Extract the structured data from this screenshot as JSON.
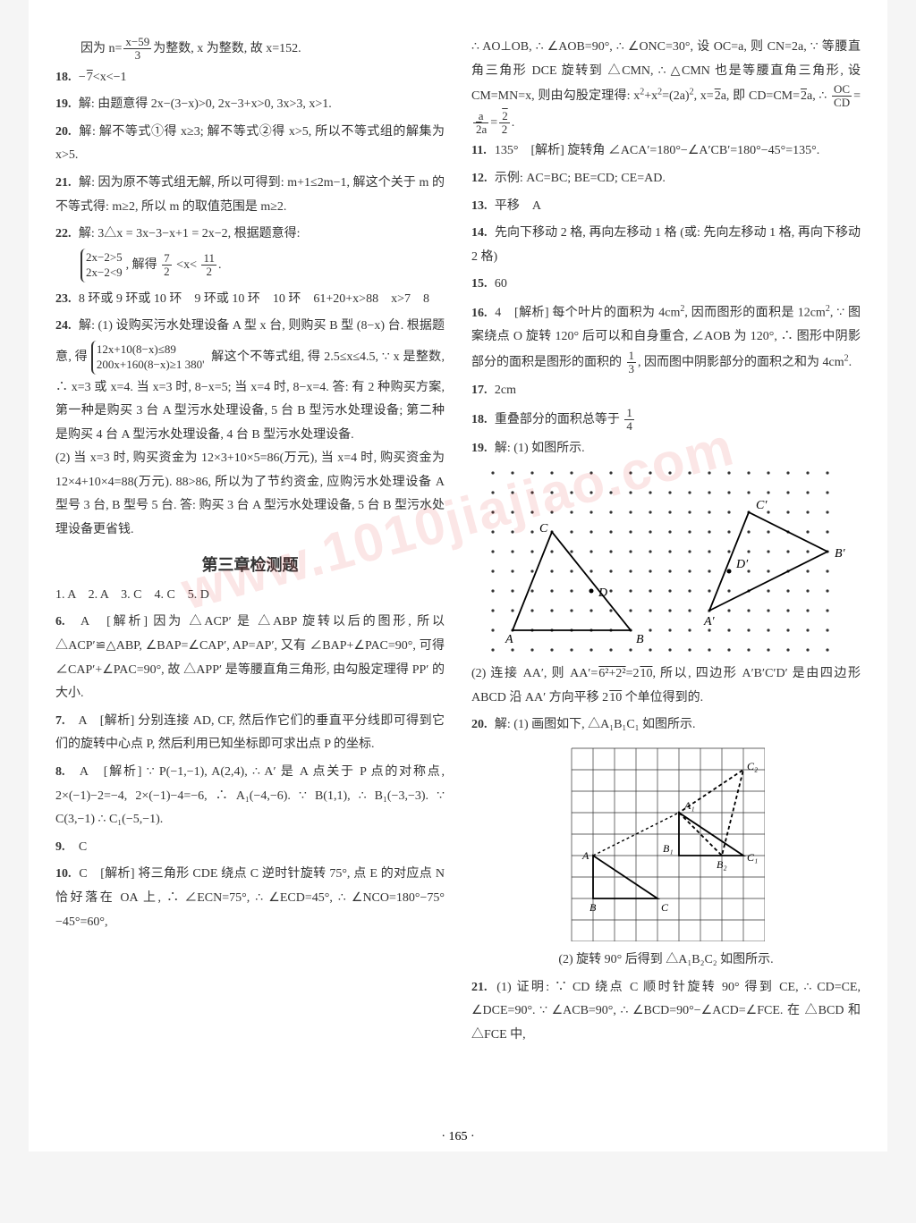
{
  "page_number": "· 165 ·",
  "watermark": "www.1010jiajiao.com",
  "left": {
    "line17end": "因为 n = (x−59)/3 为整数, x 为整数, 故 x=152.",
    "i18": "−√7 < x < −1",
    "i19": "解: 由题意得 2x−(3−x)>0, 2x−3+x>0, 3x>3, x>1.",
    "i20": "解: 解不等式①得 x≥3; 解不等式②得 x>5, 所以不等式组的解集为 x>5.",
    "i21": "解: 因为原不等式组无解, 所以可得到: m+1≤2m−1, 解这个关于 m 的不等式得: m≥2, 所以 m 的取值范围是 m≥2.",
    "i22": "解: 3△x = 3x−3−x+1 = 2x−2, 根据题意得:",
    "i22_brace_top": "2x−2>5",
    "i22_brace_bot": "2x−2<9",
    "i22_after": ", 解得 7/2 < x < 11/2.",
    "i23": "8 环或 9 环或 10 环　9 环或 10 环　10 环　61+20+x>88　x>7　8",
    "i24": "解: (1) 设购买污水处理设备 A 型 x 台, 则购买 B 型 (8−x) 台. 根据题意, 得",
    "i24_brace_top": "12x+10(8−x)≤89",
    "i24_brace_bot": "200x+160(8−x)≥1 380'",
    "i24_after1": "解这个不等式组, 得 2.5≤x≤4.5, ∵ x 是整数, ∴ x=3 或 x=4. 当 x=3 时, 8−x=5; 当 x=4 时, 8−x=4. 答: 有 2 种购买方案, 第一种是购买 3 台 A 型污水处理设备, 5 台 B 型污水处理设备; 第二种是购买 4 台 A 型污水处理设备, 4 台 B 型污水处理设备.",
    "i24_after2": "(2) 当 x=3 时, 购买资金为 12×3+10×5=86(万元), 当 x=4 时, 购买资金为 12×4+10×4=88(万元). 88>86, 所以为了节约资金, 应购污水处理设备 A 型号 3 台, B 型号 5 台. 答: 购买 3 台 A 型污水处理设备, 5 台 B 型污水处理设备更省钱.",
    "chapter": "第三章检测题",
    "mc": "1. A　2. A　3. C　4. C　5. D",
    "i6": "A　[解析] 因为 △ACP′ 是 △ABP 旋转以后的图形, 所以 △ACP′≌△ABP, ∠BAP=∠CAP′, AP=AP′, 又有 ∠BAP+∠PAC=90°, 可得 ∠CAP′+∠PAC=90°, 故 △APP′ 是等腰直角三角形, 由勾股定理得 PP′ 的大小.",
    "i7": "A　[解析] 分别连接 AD, CF, 然后作它们的垂直平分线即可得到它们的旋转中心点 P, 然后利用已知坐标即可求出点 P 的坐标.",
    "i8": "A　[解析] ∵ P(−1,−1), A(2,4), ∴ A′ 是 A 点关于 P 点的对称点, 2×(−1)−2=−4, 2×(−1)−4=−6, ∴ A₁(−4,−6). ∵ B(1,1), ∴ B₁(−3,−3). ∵ C(3,−1) ∴ C₁(−5,−1).",
    "i9": "C",
    "i10": "C　[解析] 将三角形 CDE 绕点 C 逆时针旋转 75°, 点 E 的对应点 N 恰好落在 OA 上, ∴ ∠ECN=75°, ∴ ∠ECD=45°, ∴ ∠NCO=180°−75°−45°=60°,"
  },
  "right": {
    "cont10": "∴ AO⊥OB, ∴ ∠AOB=90°, ∴ ∠ONC=30°, 设 OC=a, 则 CN=2a, ∵ 等腰直角三角形 DCE 旋转到 △CMN, ∴ △CMN 也是等腰直角三角形, 设 CM=MN=x, 则由勾股定理得: x²+x²=(2a)², x=√2a, 即 CD=CM=√2a, ∴ OC/CD = a/(√2a) = √2/2.",
    "i11": "135°　[解析] 旋转角 ∠ACA′=180°−∠A′CB′=180°−45°=135°.",
    "i12": "示例: AC=BC; BE=CD; CE=AD.",
    "i13": "平移　A",
    "i14": "先向下移动 2 格, 再向左移动 1 格 (或: 先向左移动 1 格, 再向下移动 2 格)",
    "i15": "60",
    "i16": "4　[解析] 每个叶片的面积为 4cm², 因而图形的面积是 12cm², ∵ 图案绕点 O 旋转 120° 后可以和自身重合, ∠AOB 为 120°, ∴ 图形中阴影部分的面积是图形的面积的 1/3, 因而图中阴影部分的面积之和为 4cm².",
    "i17": "2cm",
    "i18": "重叠部分的面积总等于 1/4",
    "i19": "解: (1) 如图所示.",
    "i19b": "(2) 连接 AA′, 则 AA′=√(6²+2²)=2√10, 所以, 四边形 A′B′C′D′ 是由四边形 ABCD 沿 AA′ 方向平移 2√10 个单位得到的.",
    "i20": "解: (1) 画图如下, △A₁B₁C₁ 如图所示.",
    "i20b": "(2) 旋转 90° 后得到 △A₁B₂C₂ 如图所示.",
    "i21": "(1) 证明: ∵ CD 绕点 C 顺时针旋转 90° 得到 CE, ∴ CD=CE, ∠DCE=90°. ∵ ∠ACB=90°, ∴ ∠BCD=90°−∠ACD=∠FCE. 在 △BCD 和 △FCE 中,"
  },
  "fig19": {
    "cols": 18,
    "rows": 10,
    "spacing": 22,
    "dot_color": "#333",
    "line_color": "#000",
    "labels": [
      "A",
      "B",
      "C",
      "D",
      "A′",
      "B′",
      "C′",
      "D′"
    ],
    "triangle1": [
      [
        1,
        8
      ],
      [
        7,
        8
      ],
      [
        3,
        3
      ]
    ],
    "triangle2": [
      [
        11,
        7
      ],
      [
        17,
        4
      ],
      [
        13,
        2
      ]
    ],
    "points_D": [
      [
        5,
        6
      ]
    ],
    "points_Dp": [
      [
        12,
        5
      ]
    ]
  },
  "fig20": {
    "cols": 9,
    "rows": 9,
    "cell": 24,
    "grid_color": "#333",
    "labels": {
      "A": "A",
      "B": "B",
      "C": "C",
      "A1": "A₁",
      "B1": "B₁",
      "C1": "C₁",
      "B2": "B₂",
      "C2": "C₂"
    },
    "tri_ABC": [
      [
        1,
        5
      ],
      [
        1,
        7
      ],
      [
        4,
        7
      ]
    ],
    "tri_A1B1C1": [
      [
        5,
        3
      ],
      [
        5,
        5
      ],
      [
        8,
        5
      ]
    ],
    "tri_A1B2C2": [
      [
        5,
        3
      ],
      [
        7,
        5
      ],
      [
        8,
        1
      ]
    ]
  }
}
